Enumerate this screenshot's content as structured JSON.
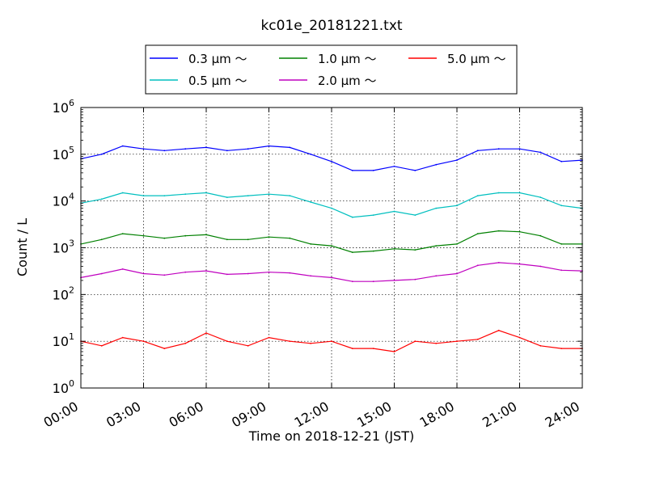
{
  "chart_data": {
    "type": "line",
    "title": "kc01e_20181221.txt",
    "xlabel": "Time on 2018-12-21 (JST)",
    "ylabel": "Count / L",
    "yscale": "log",
    "xlim": [
      "00:00",
      "24:00"
    ],
    "ylim": [
      1,
      1000000
    ],
    "x_ticks": [
      "00:00",
      "03:00",
      "06:00",
      "09:00",
      "12:00",
      "15:00",
      "18:00",
      "21:00",
      "24:00"
    ],
    "y_ticks": [
      {
        "base": "10",
        "exp": "0"
      },
      {
        "base": "10",
        "exp": "1"
      },
      {
        "base": "10",
        "exp": "2"
      },
      {
        "base": "10",
        "exp": "3"
      },
      {
        "base": "10",
        "exp": "4"
      },
      {
        "base": "10",
        "exp": "5"
      },
      {
        "base": "10",
        "exp": "6"
      }
    ],
    "grid": true,
    "legend_position": "top-center",
    "x_hours": [
      0,
      1,
      2,
      3,
      4,
      5,
      6,
      7,
      8,
      9,
      10,
      11,
      12,
      13,
      14,
      15,
      16,
      17,
      18,
      19,
      20,
      21,
      22,
      23,
      24
    ],
    "series": [
      {
        "name": "0.3 μm ～",
        "color": "#0000ff",
        "values": [
          80000,
          100000,
          150000,
          130000,
          120000,
          130000,
          140000,
          120000,
          130000,
          150000,
          140000,
          100000,
          70000,
          45000,
          45000,
          55000,
          45000,
          60000,
          75000,
          120000,
          130000,
          130000,
          110000,
          70000,
          75000
        ]
      },
      {
        "name": "0.5 μm ～",
        "color": "#00bfbf",
        "values": [
          9000,
          11000,
          15000,
          13000,
          13000,
          14000,
          15000,
          12000,
          13000,
          14000,
          13000,
          9500,
          7000,
          4500,
          5000,
          6000,
          5000,
          7000,
          8000,
          13000,
          15000,
          15000,
          12000,
          8000,
          7000
        ]
      },
      {
        "name": "1.0 μm ～",
        "color": "#008000",
        "values": [
          1200,
          1500,
          2000,
          1800,
          1600,
          1800,
          1900,
          1500,
          1500,
          1700,
          1600,
          1200,
          1100,
          800,
          850,
          950,
          900,
          1100,
          1200,
          2000,
          2300,
          2200,
          1800,
          1200,
          1200
        ]
      },
      {
        "name": "2.0 μm ～",
        "color": "#bf00bf",
        "values": [
          230,
          280,
          350,
          280,
          260,
          300,
          320,
          270,
          280,
          300,
          290,
          250,
          230,
          190,
          190,
          200,
          210,
          250,
          280,
          420,
          480,
          450,
          400,
          330,
          320
        ]
      },
      {
        "name": "5.0 μm ～",
        "color": "#ff0000",
        "values": [
          10,
          8,
          12,
          10,
          7,
          9,
          15,
          10,
          8,
          12,
          10,
          9,
          10,
          7,
          7,
          6,
          10,
          9,
          10,
          11,
          17,
          12,
          8,
          7,
          7
        ]
      }
    ]
  }
}
